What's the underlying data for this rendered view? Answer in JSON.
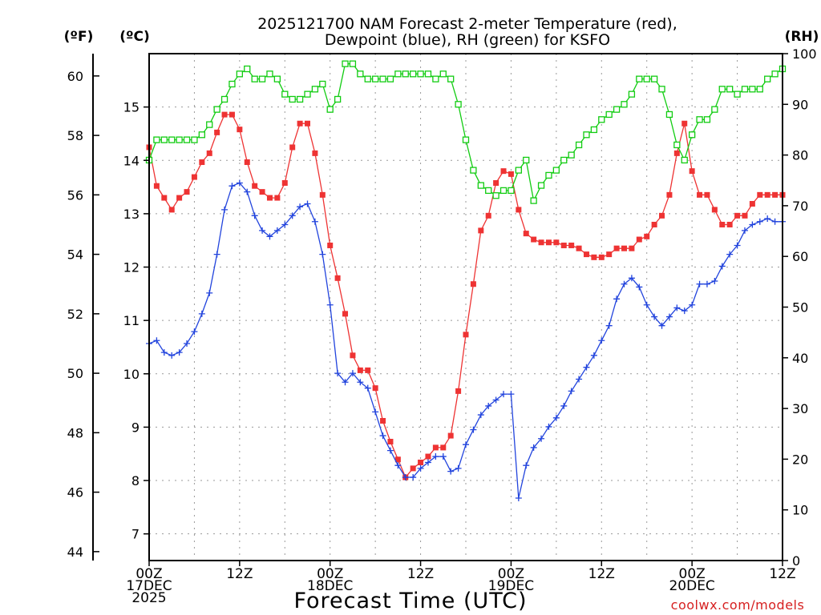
{
  "chart_data": {
    "type": "line",
    "title_line1": "2025121700 NAM Forecast 2-meter Temperature (red),",
    "title_line2": "Dewpoint (blue), RH (green) for KSFO",
    "unit_f": "(ºF)",
    "unit_c": "(ºC)",
    "unit_rh": "(RH)",
    "xlabel": "Forecast Time (UTC)",
    "credit": "coolwx.com/models",
    "x_range_hours": [
      0,
      84
    ],
    "x_ticks": [
      {
        "hour": 0,
        "lines": [
          "00Z",
          "17DEC",
          "2025"
        ]
      },
      {
        "hour": 12,
        "lines": [
          "12Z"
        ]
      },
      {
        "hour": 24,
        "lines": [
          "00Z",
          "18DEC"
        ]
      },
      {
        "hour": 36,
        "lines": [
          "12Z"
        ]
      },
      {
        "hour": 48,
        "lines": [
          "00Z",
          "19DEC"
        ]
      },
      {
        "hour": 60,
        "lines": [
          "12Z"
        ]
      },
      {
        "hour": 72,
        "lines": [
          "00Z",
          "20DEC"
        ]
      },
      {
        "hour": 84,
        "lines": [
          "12Z"
        ]
      }
    ],
    "y_left_f": {
      "range": [
        43.7,
        60.75
      ],
      "ticks": [
        44,
        46,
        48,
        50,
        52,
        54,
        56,
        58,
        60
      ]
    },
    "y_left_c": {
      "range": [
        6.5,
        16.0
      ],
      "ticks": [
        7,
        8,
        9,
        10,
        11,
        12,
        13,
        14,
        15
      ]
    },
    "y_right_rh": {
      "range": [
        0,
        100
      ],
      "ticks": [
        0,
        10,
        20,
        30,
        40,
        50,
        60,
        70,
        80,
        90,
        100
      ]
    },
    "series": [
      {
        "name": "Temperature",
        "color": "#ee3333",
        "unit": "F",
        "marker": "filled-square",
        "x": [
          0,
          1,
          2,
          3,
          4,
          5,
          6,
          7,
          8,
          9,
          10,
          11,
          12,
          13,
          14,
          15,
          16,
          17,
          18,
          19,
          20,
          21,
          22,
          23,
          24,
          25,
          26,
          27,
          28,
          29,
          30,
          31,
          32,
          33,
          34,
          35,
          36,
          37,
          38,
          39,
          40,
          41,
          42,
          43,
          44,
          45,
          46,
          47,
          48,
          49,
          50,
          51,
          52,
          53,
          54,
          55,
          56,
          57,
          58,
          59,
          60,
          61,
          62,
          63,
          64,
          65,
          66,
          67,
          68,
          69,
          70,
          71,
          72,
          73,
          74,
          75,
          76,
          77,
          78,
          79,
          80,
          81,
          82,
          83,
          84
        ],
        "values": [
          57.6,
          56.3,
          55.9,
          55.5,
          55.9,
          56.1,
          56.6,
          57.1,
          57.4,
          58.1,
          58.7,
          58.7,
          58.2,
          57.1,
          56.3,
          56.1,
          55.9,
          55.9,
          56.4,
          57.6,
          58.4,
          58.4,
          57.4,
          56.0,
          54.3,
          53.2,
          52.0,
          50.6,
          50.1,
          50.1,
          49.5,
          48.4,
          47.7,
          47.1,
          46.5,
          46.8,
          47.0,
          47.2,
          47.5,
          47.5,
          47.9,
          49.4,
          51.3,
          53.0,
          54.8,
          55.3,
          56.4,
          56.8,
          56.7,
          55.5,
          54.7,
          54.5,
          54.4,
          54.4,
          54.4,
          54.3,
          54.3,
          54.2,
          54.0,
          53.9,
          53.9,
          54.0,
          54.2,
          54.2,
          54.2,
          54.5,
          54.6,
          55.0,
          55.3,
          56.0,
          57.4,
          58.4,
          56.8,
          56.0,
          56.0,
          55.5,
          55.0,
          55.0,
          55.3,
          55.3,
          55.7,
          56.0,
          56.0,
          56.0,
          56.0
        ]
      },
      {
        "name": "Dewpoint",
        "color": "#2244dd",
        "unit": "F",
        "marker": "plus",
        "x": [
          0,
          1,
          2,
          3,
          4,
          5,
          6,
          7,
          8,
          9,
          10,
          11,
          12,
          13,
          14,
          15,
          16,
          17,
          18,
          19,
          20,
          21,
          22,
          23,
          24,
          25,
          26,
          27,
          28,
          29,
          30,
          31,
          32,
          33,
          34,
          35,
          36,
          37,
          38,
          39,
          40,
          41,
          42,
          43,
          44,
          45,
          46,
          47,
          48,
          49,
          50,
          51,
          52,
          53,
          54,
          55,
          56,
          57,
          58,
          59,
          60,
          61,
          62,
          63,
          64,
          65,
          66,
          67,
          68,
          69,
          70,
          71,
          72,
          73,
          74,
          75,
          76,
          77,
          78,
          79,
          80,
          81,
          82,
          83,
          84
        ],
        "values": [
          51.0,
          51.1,
          50.7,
          50.6,
          50.7,
          51.0,
          51.4,
          52.0,
          52.7,
          54.0,
          55.5,
          56.3,
          56.4,
          56.1,
          55.3,
          54.8,
          54.6,
          54.8,
          55.0,
          55.3,
          55.6,
          55.7,
          55.1,
          54.0,
          52.3,
          50.0,
          49.7,
          50.0,
          49.7,
          49.5,
          48.7,
          47.9,
          47.4,
          46.9,
          46.5,
          46.5,
          46.8,
          47.0,
          47.2,
          47.2,
          46.7,
          46.8,
          47.6,
          48.1,
          48.6,
          48.9,
          49.1,
          49.3,
          49.3,
          45.8,
          46.9,
          47.5,
          47.8,
          48.2,
          48.5,
          48.9,
          49.4,
          49.8,
          50.2,
          50.6,
          51.1,
          51.6,
          52.5,
          53.0,
          53.2,
          52.9,
          52.3,
          51.9,
          51.6,
          51.9,
          52.2,
          52.1,
          52.3,
          53.0,
          53.0,
          53.1,
          53.6,
          54.0,
          54.3,
          54.8,
          55.0,
          55.1,
          55.2,
          55.1,
          55.1
        ]
      },
      {
        "name": "RH",
        "color": "#11cc11",
        "unit": "%",
        "marker": "open-square",
        "x": [
          0,
          1,
          2,
          3,
          4,
          5,
          6,
          7,
          8,
          9,
          10,
          11,
          12,
          13,
          14,
          15,
          16,
          17,
          18,
          19,
          20,
          21,
          22,
          23,
          24,
          25,
          26,
          27,
          28,
          29,
          30,
          31,
          32,
          33,
          34,
          35,
          36,
          37,
          38,
          39,
          40,
          41,
          42,
          43,
          44,
          45,
          46,
          47,
          48,
          49,
          50,
          51,
          52,
          53,
          54,
          55,
          56,
          57,
          58,
          59,
          60,
          61,
          62,
          63,
          64,
          65,
          66,
          67,
          68,
          69,
          70,
          71,
          72,
          73,
          74,
          75,
          76,
          77,
          78,
          79,
          80,
          81,
          82,
          83,
          84
        ],
        "values": [
          79,
          83,
          83,
          83,
          83,
          83,
          83,
          84,
          86,
          89,
          91,
          94,
          96,
          97,
          95,
          95,
          96,
          95,
          92,
          91,
          91,
          92,
          93,
          94,
          89,
          91,
          98,
          98,
          96,
          95,
          95,
          95,
          95,
          96,
          96,
          96,
          96,
          96,
          95,
          96,
          95,
          90,
          83,
          77,
          74,
          73,
          72,
          73,
          73,
          77,
          79,
          71,
          74,
          76,
          77,
          79,
          80,
          82,
          84,
          85,
          87,
          88,
          89,
          90,
          92,
          95,
          95,
          95,
          93,
          88,
          82,
          79,
          84,
          87,
          87,
          89,
          93,
          93,
          92,
          93,
          93,
          93,
          95,
          96,
          97
        ]
      }
    ]
  }
}
